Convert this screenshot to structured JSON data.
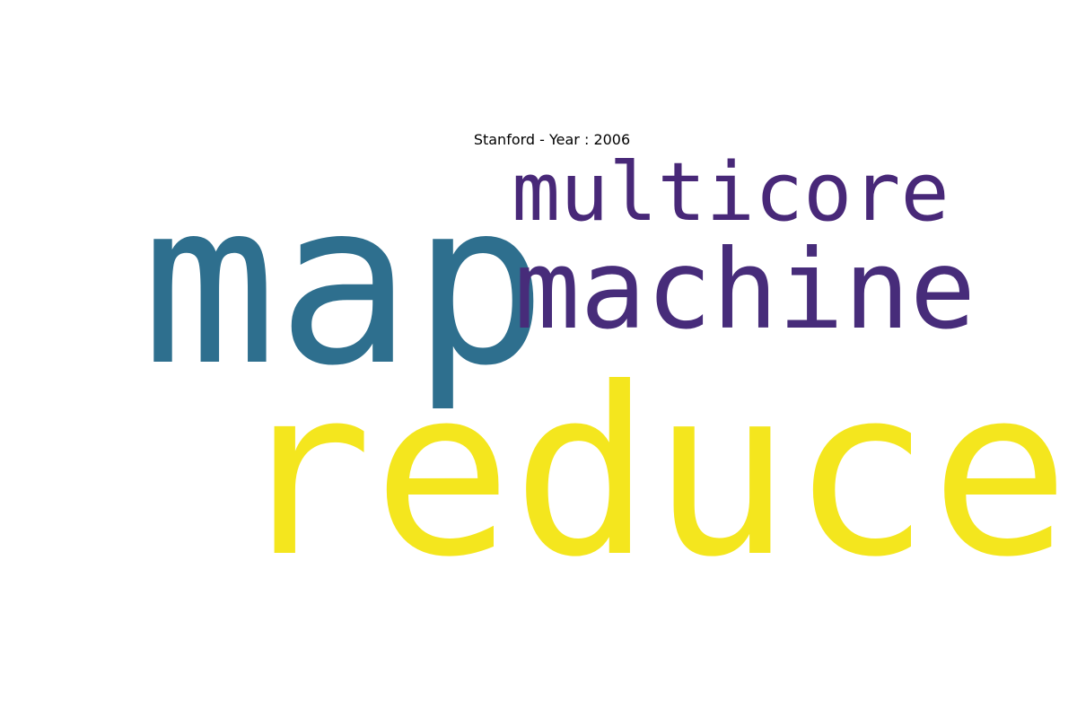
{
  "title": "Stanford - Year : 2006",
  "words": [
    {
      "id": "map",
      "text": "map",
      "color": "#2e6f8e"
    },
    {
      "id": "multicore",
      "text": "multicore",
      "color": "#482878"
    },
    {
      "id": "machine",
      "text": "machine",
      "color": "#472c7a"
    },
    {
      "id": "reduce",
      "text": "reduce",
      "color": "#f4e61e"
    }
  ]
}
